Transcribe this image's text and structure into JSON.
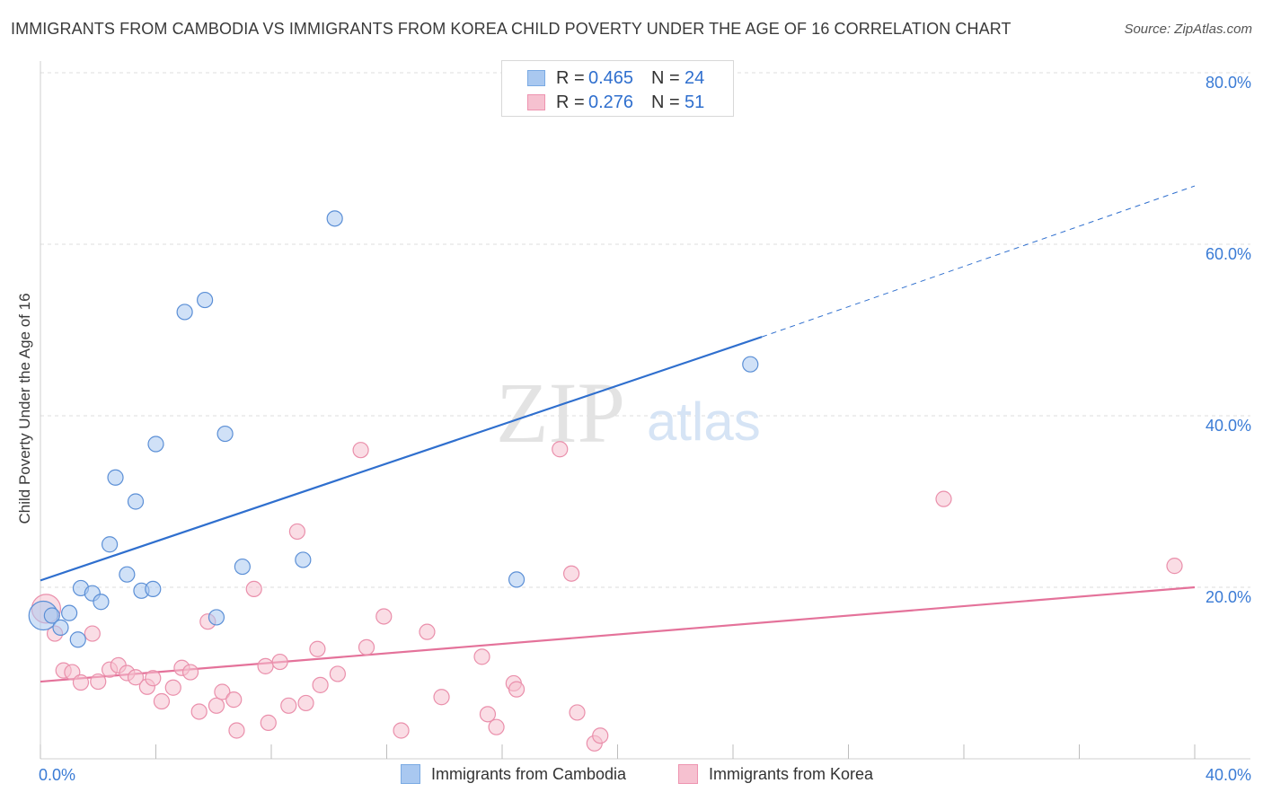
{
  "title": "IMMIGRANTS FROM CAMBODIA VS IMMIGRANTS FROM KOREA CHILD POVERTY UNDER THE AGE OF 16 CORRELATION CHART",
  "source": "Source: ZipAtlas.com",
  "watermark": {
    "zip": "ZIP",
    "atlas": "atlas"
  },
  "legend_top": [
    {
      "r_label": "R =",
      "r_value": "0.465",
      "n_label": "N =",
      "n_value": "24",
      "color": "#a9c8f0",
      "border": "#7aaae3"
    },
    {
      "r_label": "R =",
      "r_value": "0.276",
      "n_label": "N =",
      "n_value": "51",
      "color": "#f6c1d0",
      "border": "#ee94b0"
    }
  ],
  "chart_data": {
    "type": "scatter",
    "title": "IMMIGRANTS FROM CAMBODIA VS IMMIGRANTS FROM KOREA CHILD POVERTY UNDER THE AGE OF 16 CORRELATION CHART",
    "xlabel": "",
    "ylabel": "Child Poverty Under the Age of 16",
    "xlim": [
      0,
      40
    ],
    "ylim": [
      0,
      80
    ],
    "x_tick_labels": [
      "0.0%",
      "40.0%"
    ],
    "y_ticks": [
      20,
      40,
      60,
      80
    ],
    "y_tick_labels": [
      "20.0%",
      "40.0%",
      "60.0%",
      "80.0%"
    ],
    "grid": true,
    "legend_position": "bottom",
    "series": [
      {
        "name": "Immigrants from Cambodia",
        "color": "#a9c8f0",
        "stroke": "#5b8fd6",
        "trend_color": "#2f6fce",
        "trend": {
          "x0": 0,
          "y0": 20.8,
          "x1": 25,
          "y1": 49.2,
          "dash_to_x": 40,
          "dash_to_y": 66.8
        },
        "points": [
          [
            0.1,
            16.7
          ],
          [
            0.4,
            16.7
          ],
          [
            0.7,
            15.3
          ],
          [
            1.0,
            17.0
          ],
          [
            1.3,
            13.9
          ],
          [
            1.4,
            19.9
          ],
          [
            1.8,
            19.3
          ],
          [
            2.1,
            18.3
          ],
          [
            2.4,
            25.0
          ],
          [
            2.6,
            32.8
          ],
          [
            3.0,
            21.5
          ],
          [
            3.3,
            30.0
          ],
          [
            3.5,
            19.6
          ],
          [
            3.9,
            19.8
          ],
          [
            4.0,
            36.7
          ],
          [
            5.0,
            52.1
          ],
          [
            5.7,
            53.5
          ],
          [
            6.1,
            16.5
          ],
          [
            6.4,
            37.9
          ],
          [
            7.0,
            22.4
          ],
          [
            9.1,
            23.2
          ],
          [
            10.2,
            63.0
          ],
          [
            16.5,
            20.9
          ],
          [
            24.6,
            46.0
          ]
        ]
      },
      {
        "name": "Immigrants from Korea",
        "color": "#f6c1d0",
        "stroke": "#ea8fab",
        "trend_color": "#e4729a",
        "trend": {
          "x0": 0,
          "y0": 9.0,
          "x1": 40,
          "y1": 20.0
        },
        "points": [
          [
            0.2,
            17.5
          ],
          [
            0.5,
            14.6
          ],
          [
            0.8,
            10.3
          ],
          [
            1.1,
            10.1
          ],
          [
            1.4,
            8.9
          ],
          [
            1.8,
            14.6
          ],
          [
            2.0,
            9.0
          ],
          [
            2.4,
            10.4
          ],
          [
            2.7,
            10.9
          ],
          [
            3.0,
            10.0
          ],
          [
            3.3,
            9.5
          ],
          [
            3.7,
            8.4
          ],
          [
            3.9,
            9.4
          ],
          [
            4.2,
            6.7
          ],
          [
            4.6,
            8.3
          ],
          [
            4.9,
            10.6
          ],
          [
            5.2,
            10.1
          ],
          [
            5.5,
            5.5
          ],
          [
            5.8,
            16.0
          ],
          [
            6.1,
            6.2
          ],
          [
            6.3,
            7.8
          ],
          [
            6.7,
            6.9
          ],
          [
            6.8,
            3.3
          ],
          [
            7.4,
            19.8
          ],
          [
            7.8,
            10.8
          ],
          [
            7.9,
            4.2
          ],
          [
            8.3,
            11.3
          ],
          [
            8.6,
            6.2
          ],
          [
            8.9,
            26.5
          ],
          [
            9.2,
            6.5
          ],
          [
            9.6,
            12.8
          ],
          [
            9.7,
            8.6
          ],
          [
            10.3,
            9.9
          ],
          [
            11.1,
            36.0
          ],
          [
            11.3,
            13.0
          ],
          [
            11.9,
            16.6
          ],
          [
            12.5,
            3.3
          ],
          [
            13.4,
            14.8
          ],
          [
            13.9,
            7.2
          ],
          [
            15.3,
            11.9
          ],
          [
            15.5,
            5.2
          ],
          [
            15.8,
            3.7
          ],
          [
            16.4,
            8.8
          ],
          [
            16.5,
            8.1
          ],
          [
            18.0,
            36.1
          ],
          [
            18.4,
            21.6
          ],
          [
            18.6,
            5.4
          ],
          [
            19.2,
            1.8
          ],
          [
            19.4,
            2.7
          ],
          [
            31.3,
            30.3
          ],
          [
            39.3,
            22.5
          ]
        ]
      }
    ]
  }
}
